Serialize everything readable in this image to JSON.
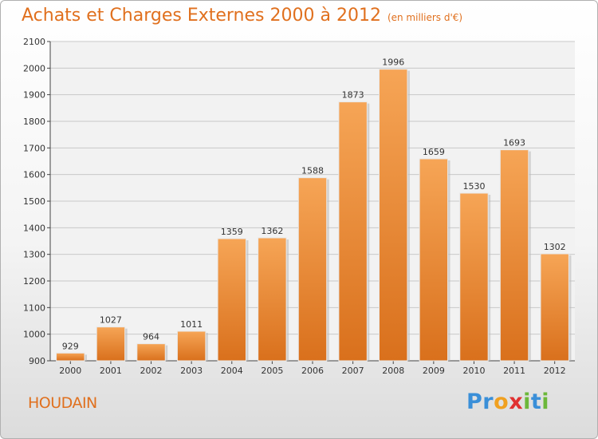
{
  "header": {
    "title": "Achats et Charges Externes 2000 à 2012",
    "unit": "(en milliers d'€)"
  },
  "footer": {
    "commune": "HOUDAIN",
    "logo_letters": [
      {
        "ch": "P",
        "color": "#3a8fd8"
      },
      {
        "ch": "r",
        "color": "#3a8fd8"
      },
      {
        "ch": "o",
        "color": "#f0a020"
      },
      {
        "ch": "x",
        "color": "#e03030"
      },
      {
        "ch": "i",
        "color": "#6cb83a"
      },
      {
        "ch": "t",
        "color": "#3a8fd8"
      },
      {
        "ch": "i",
        "color": "#6cb83a"
      }
    ]
  },
  "chart_data": {
    "type": "bar",
    "categories": [
      "2000",
      "2001",
      "2002",
      "2003",
      "2004",
      "2005",
      "2006",
      "2007",
      "2008",
      "2009",
      "2010",
      "2011",
      "2012"
    ],
    "values": [
      929,
      1027,
      964,
      1011,
      1359,
      1362,
      1588,
      1873,
      1996,
      1659,
      1530,
      1693,
      1302
    ],
    "ylim": [
      900,
      2100
    ],
    "yticks": [
      900,
      1000,
      1100,
      1200,
      1300,
      1400,
      1500,
      1600,
      1700,
      1800,
      1900,
      2000,
      2100
    ],
    "grid": true,
    "bar_color_top": "#f6a556",
    "bar_color_bottom": "#d9701c"
  }
}
